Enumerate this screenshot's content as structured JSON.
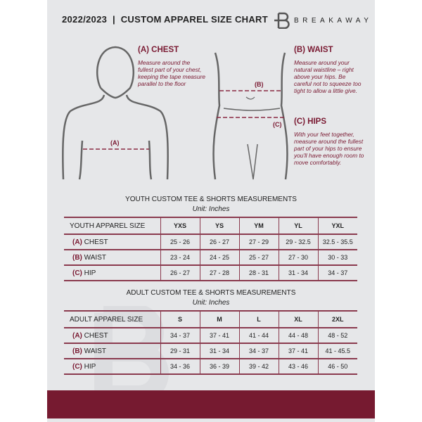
{
  "header": {
    "title": "2022/2023  |  CUSTOM APPAREL SIZE CHART",
    "brand": "BREAKAWAY",
    "logo_letter": "B"
  },
  "guide": {
    "chest": {
      "title": "(A) CHEST",
      "text": "Measure around the fullest part of your chest, keeping the tape measure parallel to the floor",
      "marker": "(A)"
    },
    "waist": {
      "title": "(B) WAIST",
      "text": "Measure around your natural waistline – right above your hips. Be careful not to squeeze too tight to allow a little give.",
      "marker": "(B)"
    },
    "hips": {
      "title": "(C) HIPS",
      "text": "With your feet together, measure around the fullest part of your hips to ensure you'll have enough room to move comfortably.",
      "marker": "(C)"
    }
  },
  "youth": {
    "title": "YOUTH CUSTOM TEE & SHORTS MEASUREMENTS",
    "unit": "Unit: Inches",
    "header_label": "YOUTH APPAREL SIZE",
    "sizes": [
      "YXS",
      "YS",
      "YM",
      "YL",
      "YXL"
    ],
    "rows": [
      {
        "mark": "(A)",
        "label": "CHEST",
        "values": [
          "25 - 26",
          "26 - 27",
          "27 - 29",
          "29 - 32.5",
          "32.5 - 35.5"
        ]
      },
      {
        "mark": "(B)",
        "label": "WAIST",
        "values": [
          "23 - 24",
          "24 - 25",
          "25 - 27",
          "27 - 30",
          "30 - 33"
        ]
      },
      {
        "mark": "(C)",
        "label": "HIP",
        "values": [
          "26 - 27",
          "27 - 28",
          "28 - 31",
          "31 - 34",
          "34 - 37"
        ]
      }
    ]
  },
  "adult": {
    "title": "ADULT CUSTOM TEE & SHORTS MEASUREMENTS",
    "unit": "Unit: Inches",
    "header_label": "ADULT APPAREL SIZE",
    "sizes": [
      "S",
      "M",
      "L",
      "XL",
      "2XL"
    ],
    "rows": [
      {
        "mark": "(A)",
        "label": "CHEST",
        "values": [
          "34 - 37",
          "37 - 41",
          "41 - 44",
          "44 - 48",
          "48 - 52"
        ]
      },
      {
        "mark": "(B)",
        "label": "WAIST",
        "values": [
          "29 - 31",
          "31 - 34",
          "34 - 37",
          "37 - 41",
          "41 - 45.5"
        ]
      },
      {
        "mark": "(C)",
        "label": "HIP",
        "values": [
          "34 - 36",
          "36 - 39",
          "39 - 42",
          "43 - 46",
          "46 - 50"
        ]
      }
    ]
  },
  "colors": {
    "accent": "#7a1a32",
    "background": "#e6e7e9"
  }
}
